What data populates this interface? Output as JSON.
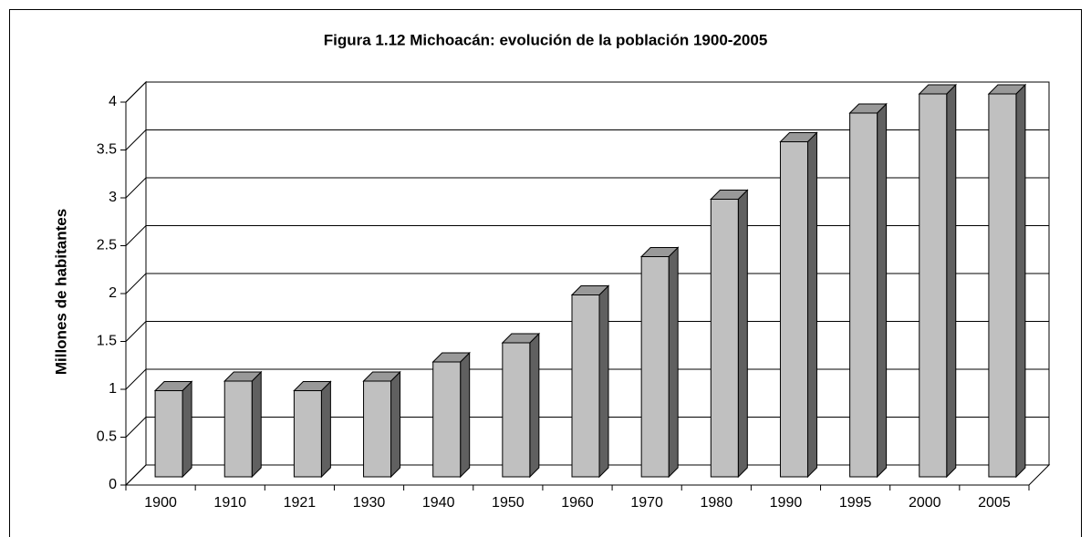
{
  "chart_data": {
    "type": "bar3d",
    "title": "Figura 1.12 Michoacán: evolución de la población 1900-2005",
    "ylabel": "Millones de habitantes",
    "categories": [
      "1900",
      "1910",
      "1921",
      "1930",
      "1940",
      "1950",
      "1960",
      "1970",
      "1980",
      "1990",
      "1995",
      "2000",
      "2005"
    ],
    "values": [
      0.9,
      1.0,
      0.9,
      1.0,
      1.2,
      1.4,
      1.9,
      2.3,
      2.9,
      3.5,
      3.8,
      4.0,
      4.0
    ],
    "color": "#c0c0c0",
    "ylim": [
      0,
      4
    ],
    "yticks": [
      0,
      0.5,
      1,
      1.5,
      2,
      2.5,
      3,
      3.5,
      4
    ],
    "grid": true
  }
}
